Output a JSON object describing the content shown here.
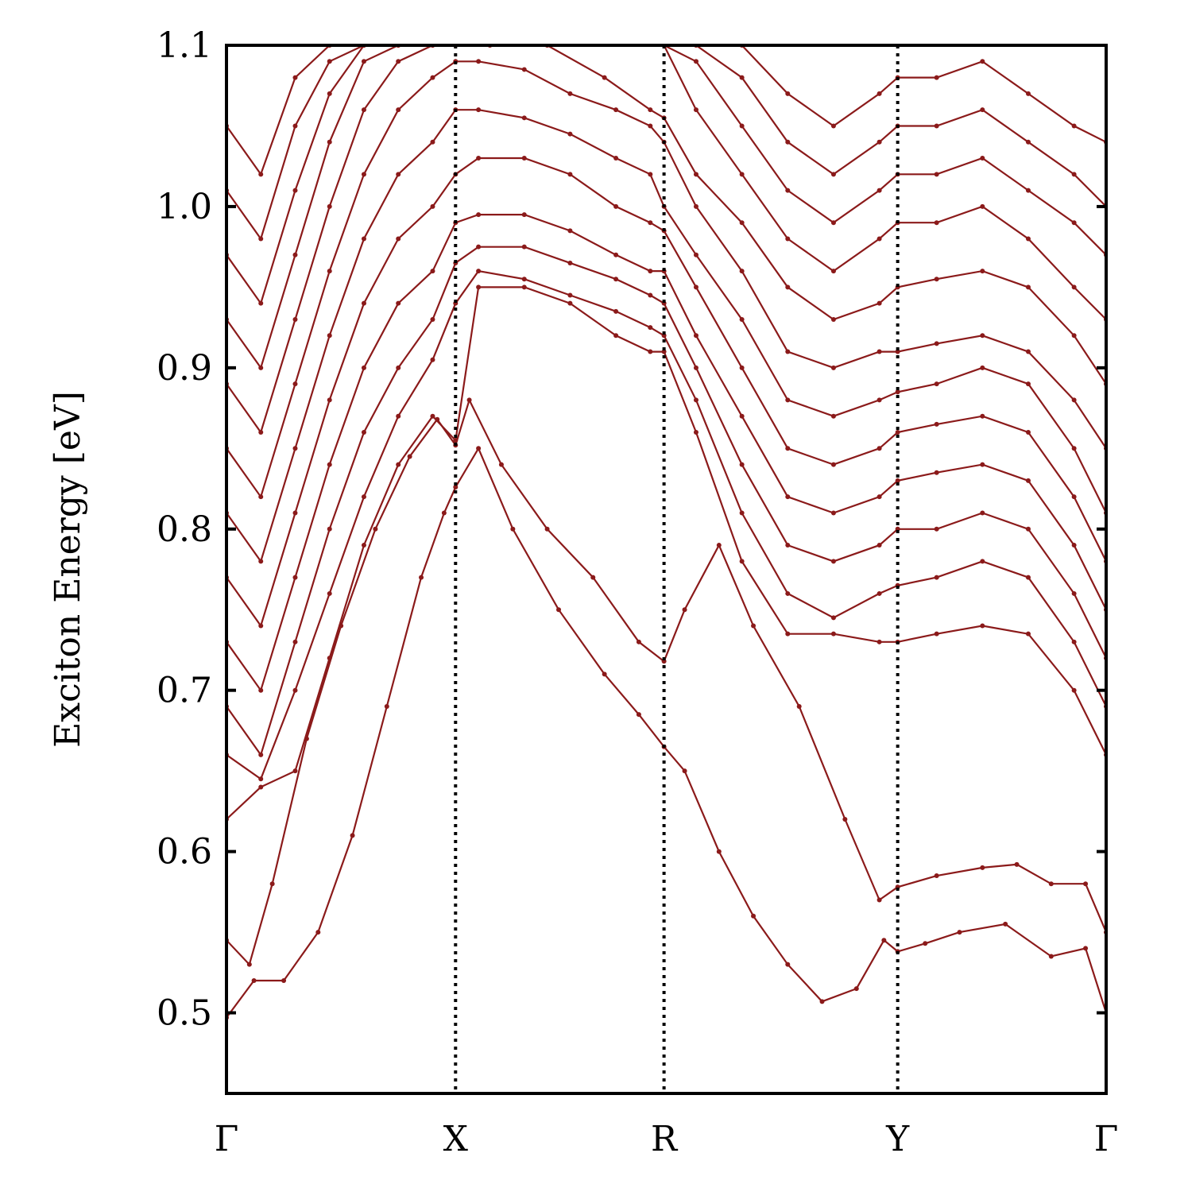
{
  "chart_data": {
    "type": "line",
    "title": "",
    "xlabel": "",
    "ylabel": "Exciton Energy [eV]",
    "ylim": [
      0.45,
      1.1
    ],
    "yticks": [
      0.5,
      0.6,
      0.7,
      0.8,
      0.9,
      1.0,
      1.1
    ],
    "ytick_labels": [
      "0.5",
      "0.6",
      "0.7",
      "0.8",
      "0.9",
      "1.0",
      "1.1"
    ],
    "kpath": [
      "Γ",
      "X",
      "R",
      "Y",
      "Γ"
    ],
    "kpath_positions": [
      0,
      1,
      1.91,
      2.93,
      3.84
    ],
    "line_color": "#8b1a1a",
    "grid": false,
    "high_symmetry_lines": "dotted vertical at X, R, Y",
    "series": [
      {
        "x": [
          0,
          0.12,
          0.25,
          0.4,
          0.55,
          0.7,
          0.85,
          0.95,
          1.0,
          1.1,
          1.25,
          1.45,
          1.65,
          1.8,
          1.91,
          2.0,
          2.15,
          2.3,
          2.45,
          2.6,
          2.75,
          2.87,
          2.93,
          3.05,
          3.2,
          3.4,
          3.6,
          3.75,
          3.84
        ],
        "values": [
          0.497,
          0.52,
          0.52,
          0.55,
          0.61,
          0.69,
          0.77,
          0.81,
          0.826,
          0.85,
          0.8,
          0.75,
          0.71,
          0.685,
          0.665,
          0.65,
          0.6,
          0.56,
          0.53,
          0.507,
          0.515,
          0.545,
          0.538,
          0.543,
          0.55,
          0.555,
          0.535,
          0.54,
          0.5
        ]
      },
      {
        "x": [
          0,
          0.1,
          0.2,
          0.35,
          0.5,
          0.65,
          0.8,
          0.92,
          1.0,
          1.06,
          1.2,
          1.4,
          1.6,
          1.8,
          1.91,
          2.0,
          2.15,
          2.3,
          2.5,
          2.7,
          2.85,
          2.93,
          3.1,
          3.3,
          3.45,
          3.6,
          3.75,
          3.84
        ],
        "values": [
          0.545,
          0.53,
          0.58,
          0.67,
          0.74,
          0.8,
          0.845,
          0.868,
          0.852,
          0.88,
          0.84,
          0.8,
          0.77,
          0.73,
          0.718,
          0.75,
          0.79,
          0.74,
          0.69,
          0.62,
          0.57,
          0.578,
          0.585,
          0.59,
          0.592,
          0.58,
          0.58,
          0.55
        ]
      },
      {
        "x": [
          0,
          0.15,
          0.3,
          0.45,
          0.6,
          0.75,
          0.9,
          1.0,
          1.1,
          1.3,
          1.5,
          1.7,
          1.85,
          1.91,
          2.05,
          2.25,
          2.45,
          2.65,
          2.85,
          2.93,
          3.1,
          3.3,
          3.5,
          3.7,
          3.84
        ],
        "values": [
          0.62,
          0.64,
          0.65,
          0.72,
          0.79,
          0.84,
          0.87,
          0.855,
          0.95,
          0.95,
          0.94,
          0.92,
          0.91,
          0.91,
          0.86,
          0.78,
          0.735,
          0.735,
          0.73,
          0.73,
          0.735,
          0.74,
          0.735,
          0.7,
          0.66
        ]
      },
      {
        "x": [
          0,
          0.15,
          0.3,
          0.45,
          0.6,
          0.75,
          0.9,
          1.0,
          1.1,
          1.3,
          1.5,
          1.7,
          1.85,
          1.91,
          2.05,
          2.25,
          2.45,
          2.65,
          2.85,
          2.93,
          3.1,
          3.3,
          3.5,
          3.7,
          3.84
        ],
        "values": [
          0.66,
          0.645,
          0.7,
          0.76,
          0.82,
          0.87,
          0.905,
          0.94,
          0.96,
          0.955,
          0.945,
          0.935,
          0.925,
          0.92,
          0.88,
          0.81,
          0.76,
          0.745,
          0.76,
          0.765,
          0.77,
          0.78,
          0.77,
          0.73,
          0.69
        ]
      },
      {
        "x": [
          0,
          0.15,
          0.3,
          0.45,
          0.6,
          0.75,
          0.9,
          1.0,
          1.1,
          1.3,
          1.5,
          1.7,
          1.85,
          1.91,
          2.05,
          2.25,
          2.45,
          2.65,
          2.85,
          2.93,
          3.1,
          3.3,
          3.5,
          3.7,
          3.84
        ],
        "values": [
          0.69,
          0.66,
          0.73,
          0.8,
          0.86,
          0.9,
          0.93,
          0.965,
          0.975,
          0.975,
          0.965,
          0.955,
          0.945,
          0.94,
          0.9,
          0.84,
          0.79,
          0.78,
          0.79,
          0.8,
          0.8,
          0.81,
          0.8,
          0.76,
          0.72
        ]
      },
      {
        "x": [
          0,
          0.15,
          0.3,
          0.45,
          0.6,
          0.75,
          0.9,
          1.0,
          1.1,
          1.3,
          1.5,
          1.7,
          1.85,
          1.91,
          2.05,
          2.25,
          2.45,
          2.65,
          2.85,
          2.93,
          3.1,
          3.3,
          3.5,
          3.7,
          3.84
        ],
        "values": [
          0.73,
          0.7,
          0.77,
          0.84,
          0.9,
          0.94,
          0.96,
          0.99,
          0.995,
          0.995,
          0.985,
          0.97,
          0.96,
          0.96,
          0.92,
          0.87,
          0.82,
          0.81,
          0.82,
          0.83,
          0.835,
          0.84,
          0.83,
          0.79,
          0.75
        ]
      },
      {
        "x": [
          0,
          0.15,
          0.3,
          0.45,
          0.6,
          0.75,
          0.9,
          1.0,
          1.1,
          1.3,
          1.5,
          1.7,
          1.85,
          1.91,
          2.05,
          2.25,
          2.45,
          2.65,
          2.85,
          2.93,
          3.1,
          3.3,
          3.5,
          3.7,
          3.84
        ],
        "values": [
          0.77,
          0.74,
          0.81,
          0.88,
          0.94,
          0.98,
          1.0,
          1.02,
          1.03,
          1.03,
          1.02,
          1.0,
          0.99,
          0.985,
          0.95,
          0.9,
          0.85,
          0.84,
          0.85,
          0.86,
          0.865,
          0.87,
          0.86,
          0.82,
          0.78
        ]
      },
      {
        "x": [
          0,
          0.15,
          0.3,
          0.45,
          0.6,
          0.75,
          0.9,
          1.0,
          1.1,
          1.3,
          1.5,
          1.7,
          1.85,
          1.91,
          2.05,
          2.25,
          2.45,
          2.65,
          2.85,
          2.93,
          3.1,
          3.3,
          3.5,
          3.7,
          3.84
        ],
        "values": [
          0.81,
          0.78,
          0.85,
          0.92,
          0.98,
          1.02,
          1.04,
          1.06,
          1.06,
          1.055,
          1.045,
          1.03,
          1.02,
          1.0,
          0.97,
          0.93,
          0.88,
          0.87,
          0.88,
          0.885,
          0.89,
          0.9,
          0.89,
          0.85,
          0.81
        ]
      },
      {
        "x": [
          0,
          0.15,
          0.3,
          0.45,
          0.6,
          0.75,
          0.9,
          1.0,
          1.1,
          1.3,
          1.5,
          1.7,
          1.85,
          1.91,
          2.05,
          2.25,
          2.45,
          2.65,
          2.85,
          2.93,
          3.1,
          3.3,
          3.5,
          3.7,
          3.84
        ],
        "values": [
          0.85,
          0.82,
          0.89,
          0.96,
          1.02,
          1.06,
          1.08,
          1.09,
          1.09,
          1.085,
          1.07,
          1.06,
          1.05,
          1.04,
          1.0,
          0.96,
          0.91,
          0.9,
          0.91,
          0.91,
          0.915,
          0.92,
          0.91,
          0.88,
          0.85
        ]
      },
      {
        "x": [
          0,
          0.15,
          0.3,
          0.45,
          0.6,
          0.75,
          0.9,
          1.0,
          1.15,
          1.4,
          1.65,
          1.85,
          1.91,
          2.05,
          2.25,
          2.45,
          2.65,
          2.85,
          2.93,
          3.1,
          3.3,
          3.5,
          3.7,
          3.84
        ],
        "values": [
          0.89,
          0.86,
          0.93,
          1.0,
          1.06,
          1.09,
          1.1,
          1.1,
          1.1,
          1.1,
          1.08,
          1.06,
          1.055,
          1.02,
          0.99,
          0.95,
          0.93,
          0.94,
          0.95,
          0.955,
          0.96,
          0.95,
          0.92,
          0.89
        ]
      },
      {
        "x": [
          0,
          0.15,
          0.3,
          0.45,
          0.6,
          0.75,
          0.9,
          1.0,
          1.91,
          2.05,
          2.25,
          2.45,
          2.65,
          2.85,
          2.93,
          3.1,
          3.3,
          3.5,
          3.7,
          3.84
        ],
        "values": [
          0.93,
          0.9,
          0.97,
          1.04,
          1.09,
          1.1,
          1.1,
          1.1,
          1.1,
          1.06,
          1.02,
          0.98,
          0.96,
          0.98,
          0.99,
          0.99,
          1.0,
          0.98,
          0.95,
          0.93
        ]
      },
      {
        "x": [
          0,
          0.15,
          0.3,
          0.45,
          0.6,
          0.75,
          1.91,
          2.05,
          2.25,
          2.45,
          2.65,
          2.85,
          2.93,
          3.1,
          3.3,
          3.5,
          3.7,
          3.84
        ],
        "values": [
          0.97,
          0.94,
          1.01,
          1.07,
          1.1,
          1.1,
          1.1,
          1.09,
          1.05,
          1.01,
          0.99,
          1.01,
          1.02,
          1.02,
          1.03,
          1.01,
          0.99,
          0.97
        ]
      },
      {
        "x": [
          0,
          0.15,
          0.3,
          0.45,
          0.6,
          2.05,
          2.25,
          2.45,
          2.65,
          2.85,
          2.93,
          3.1,
          3.3,
          3.5,
          3.7,
          3.84
        ],
        "values": [
          1.01,
          0.98,
          1.05,
          1.09,
          1.1,
          1.1,
          1.08,
          1.04,
          1.02,
          1.04,
          1.05,
          1.05,
          1.06,
          1.04,
          1.02,
          1.0
        ]
      },
      {
        "x": [
          0,
          0.15,
          0.3,
          0.45,
          2.25,
          2.45,
          2.65,
          2.85,
          2.93,
          3.1,
          3.3,
          3.5,
          3.7,
          3.84
        ],
        "values": [
          1.05,
          1.02,
          1.08,
          1.1,
          1.1,
          1.07,
          1.05,
          1.07,
          1.08,
          1.08,
          1.09,
          1.07,
          1.05,
          1.04
        ]
      }
    ]
  }
}
